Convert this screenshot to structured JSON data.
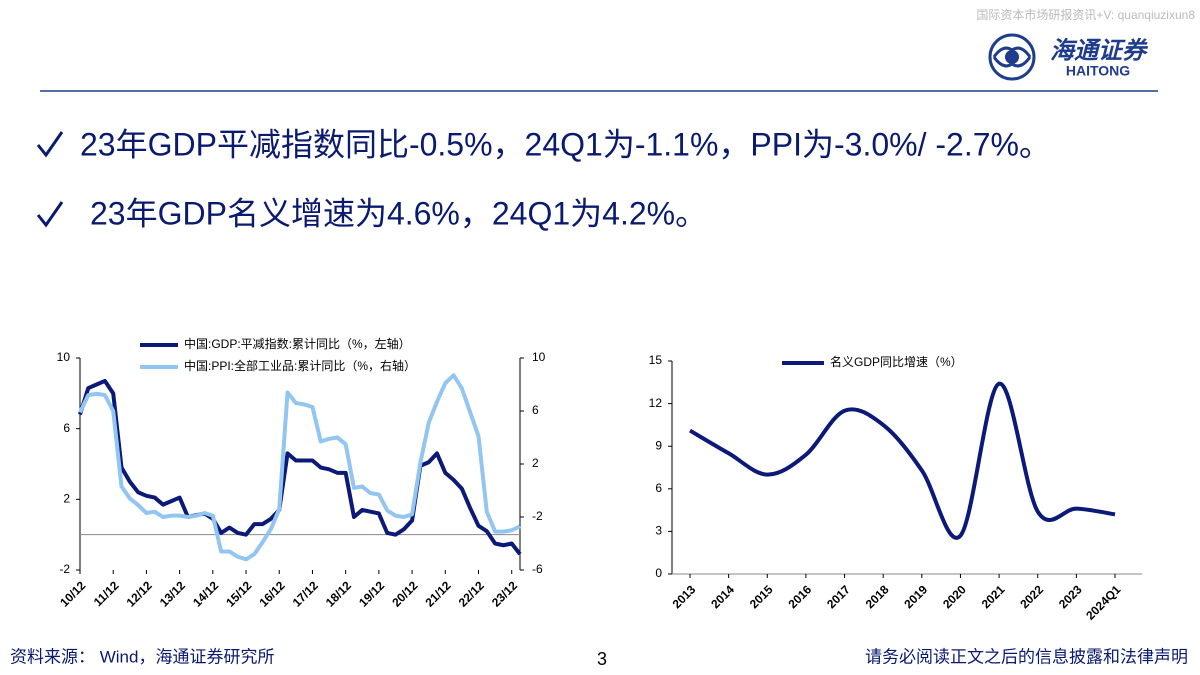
{
  "header": {
    "watermark": "国际资本市场研报资讯+V: quanqiuzixun8",
    "logo_cn": "海通证券",
    "logo_en": "HAITONG"
  },
  "bullets": [
    "23年GDP平减指数同比-0.5%，24Q1为-1.1%，PPI为-3.0%/ -2.7%。",
    "23年GDP名义增速为4.6%，24Q1为4.2%。"
  ],
  "footer": {
    "source": "资料来源： Wind，海通证券研究所",
    "page": "3",
    "disclaimer": "请务必阅读正文之后的信息披露和法律声明"
  },
  "chart_data": [
    {
      "type": "line",
      "categories": [
        "10/12",
        null,
        null,
        null,
        "11/12",
        null,
        null,
        null,
        "12/12",
        null,
        null,
        null,
        "13/12",
        null,
        null,
        null,
        "14/12",
        null,
        null,
        null,
        "15/12",
        null,
        null,
        null,
        "16/12",
        null,
        null,
        null,
        "17/12",
        null,
        null,
        null,
        "18/12",
        null,
        null,
        null,
        "19/12",
        null,
        null,
        null,
        "20/12",
        null,
        null,
        null,
        "21/12",
        null,
        null,
        null,
        "22/12",
        null,
        null,
        null,
        "23/12",
        null
      ],
      "series": [
        {
          "name": "中国:GDP:平减指数:累计同比（%，左轴）",
          "color": "#0b1a78",
          "values": [
            6.8,
            8.3,
            8.5,
            8.7,
            8.0,
            3.8,
            3.0,
            2.4,
            2.2,
            2.1,
            1.7,
            1.9,
            2.1,
            1.0,
            1.1,
            1.2,
            0.9,
            0.1,
            0.4,
            0.1,
            0.0,
            0.6,
            0.6,
            0.9,
            1.4,
            4.6,
            4.2,
            4.2,
            4.2,
            3.8,
            3.7,
            3.5,
            3.5,
            1.0,
            1.4,
            1.3,
            1.2,
            0.1,
            0.0,
            0.3,
            0.8,
            3.9,
            4.1,
            4.6,
            3.5,
            3.1,
            2.6,
            1.5,
            0.5,
            0.2,
            -0.5,
            -0.6,
            -0.5,
            -1.1
          ]
        },
        {
          "name": "中国:PPI:全部工业品:累计同比（%，右轴）",
          "color": "#92c5f0",
          "axis": "y2",
          "values": [
            5.9,
            7.2,
            7.3,
            7.2,
            6.0,
            0.3,
            -0.6,
            -1.1,
            -1.7,
            -1.6,
            -2.0,
            -1.9,
            -1.9,
            -2.0,
            -1.9,
            -1.7,
            -1.9,
            -4.6,
            -4.6,
            -5.0,
            -5.2,
            -4.8,
            -3.9,
            -2.9,
            -1.4,
            7.4,
            6.6,
            6.5,
            6.3,
            3.7,
            3.9,
            4.0,
            3.5,
            0.2,
            0.3,
            -0.2,
            -0.3,
            -1.5,
            -1.9,
            -2.0,
            -1.8,
            2.1,
            5.1,
            6.7,
            8.1,
            8.7,
            7.7,
            5.9,
            4.1,
            -1.6,
            -3.1,
            -3.1,
            -3.0,
            -2.7
          ]
        }
      ],
      "ylim": [
        -2,
        10
      ],
      "yticks": [
        -2,
        2,
        6,
        10
      ],
      "y2lim": [
        -6,
        10
      ],
      "y2ticks": [
        -6,
        -2,
        2,
        6,
        10
      ],
      "legend": "top",
      "smooth": false
    },
    {
      "type": "line",
      "categories": [
        "2013",
        "2014",
        "2015",
        "2016",
        "2017",
        "2018",
        "2019",
        "2020",
        "2021",
        "2022",
        "2023",
        "2024Q1"
      ],
      "series": [
        {
          "name": "名义GDP同比增速（%）",
          "color": "#0b1a78",
          "values": [
            10.1,
            8.5,
            7.0,
            8.4,
            11.5,
            10.5,
            7.3,
            2.7,
            13.4,
            4.4,
            4.6,
            4.2
          ]
        }
      ],
      "ylim": [
        0,
        15
      ],
      "yticks": [
        0,
        3,
        6,
        9,
        12,
        15
      ],
      "legend": "top",
      "smooth": true
    }
  ]
}
